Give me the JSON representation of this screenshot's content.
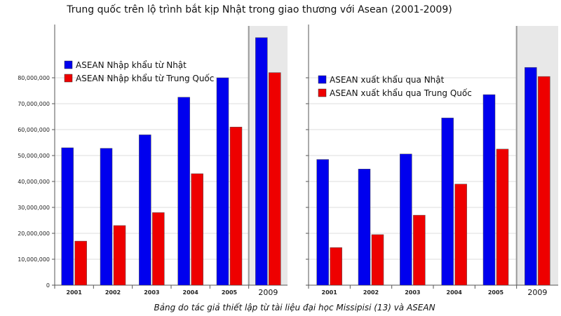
{
  "title": "Trung quốc trên lộ trình bắt kịp Nhật trong giao thương với Asean (2001-2009)",
  "caption": "Bảng do tác giả thiết lập từ tài liệu đại học Missipisi (13) và ASEAN",
  "colors": {
    "blue": "#0000ee",
    "red": "#ee0000",
    "axis": "#555555",
    "grid": "#bbbbbb"
  },
  "chart_data": [
    {
      "type": "bar",
      "categories": [
        "2001",
        "2002",
        "2003",
        "2004",
        "2005",
        "2009"
      ],
      "series": [
        {
          "name": "ASEAN Nhập khẩu từ Nhật",
          "color": "#0000ee",
          "values": [
            53000000,
            52800000,
            58000000,
            72500000,
            80000000,
            95500000
          ]
        },
        {
          "name": "ASEAN Nhập khẩu từ Trung Quốc",
          "color": "#ee0000",
          "values": [
            17000000,
            23000000,
            28000000,
            43000000,
            61000000,
            82000000
          ]
        }
      ],
      "yticks": [
        "0",
        "10,000,000",
        "20,000,000",
        "30,000,000",
        "40,000,000",
        "50,000,000",
        "60,000,000",
        "70,000,000",
        "80,000,000"
      ],
      "ylim": [
        0,
        100000000
      ],
      "legend": "top-left"
    },
    {
      "type": "bar",
      "categories": [
        "2001",
        "2002",
        "2003",
        "2004",
        "2005",
        "2009"
      ],
      "series": [
        {
          "name": "ASEAN xuất khẩu qua Nhật",
          "color": "#0000ee",
          "values": [
            48500000,
            44800000,
            50600000,
            64500000,
            73500000,
            84000000
          ]
        },
        {
          "name": "ASEAN xuất khẩu qua Trung Quốc",
          "color": "#ee0000",
          "values": [
            14500000,
            19500000,
            27000000,
            39000000,
            52500000,
            80500000
          ]
        }
      ],
      "ylim": [
        0,
        100000000
      ],
      "legend": "top-left"
    }
  ]
}
